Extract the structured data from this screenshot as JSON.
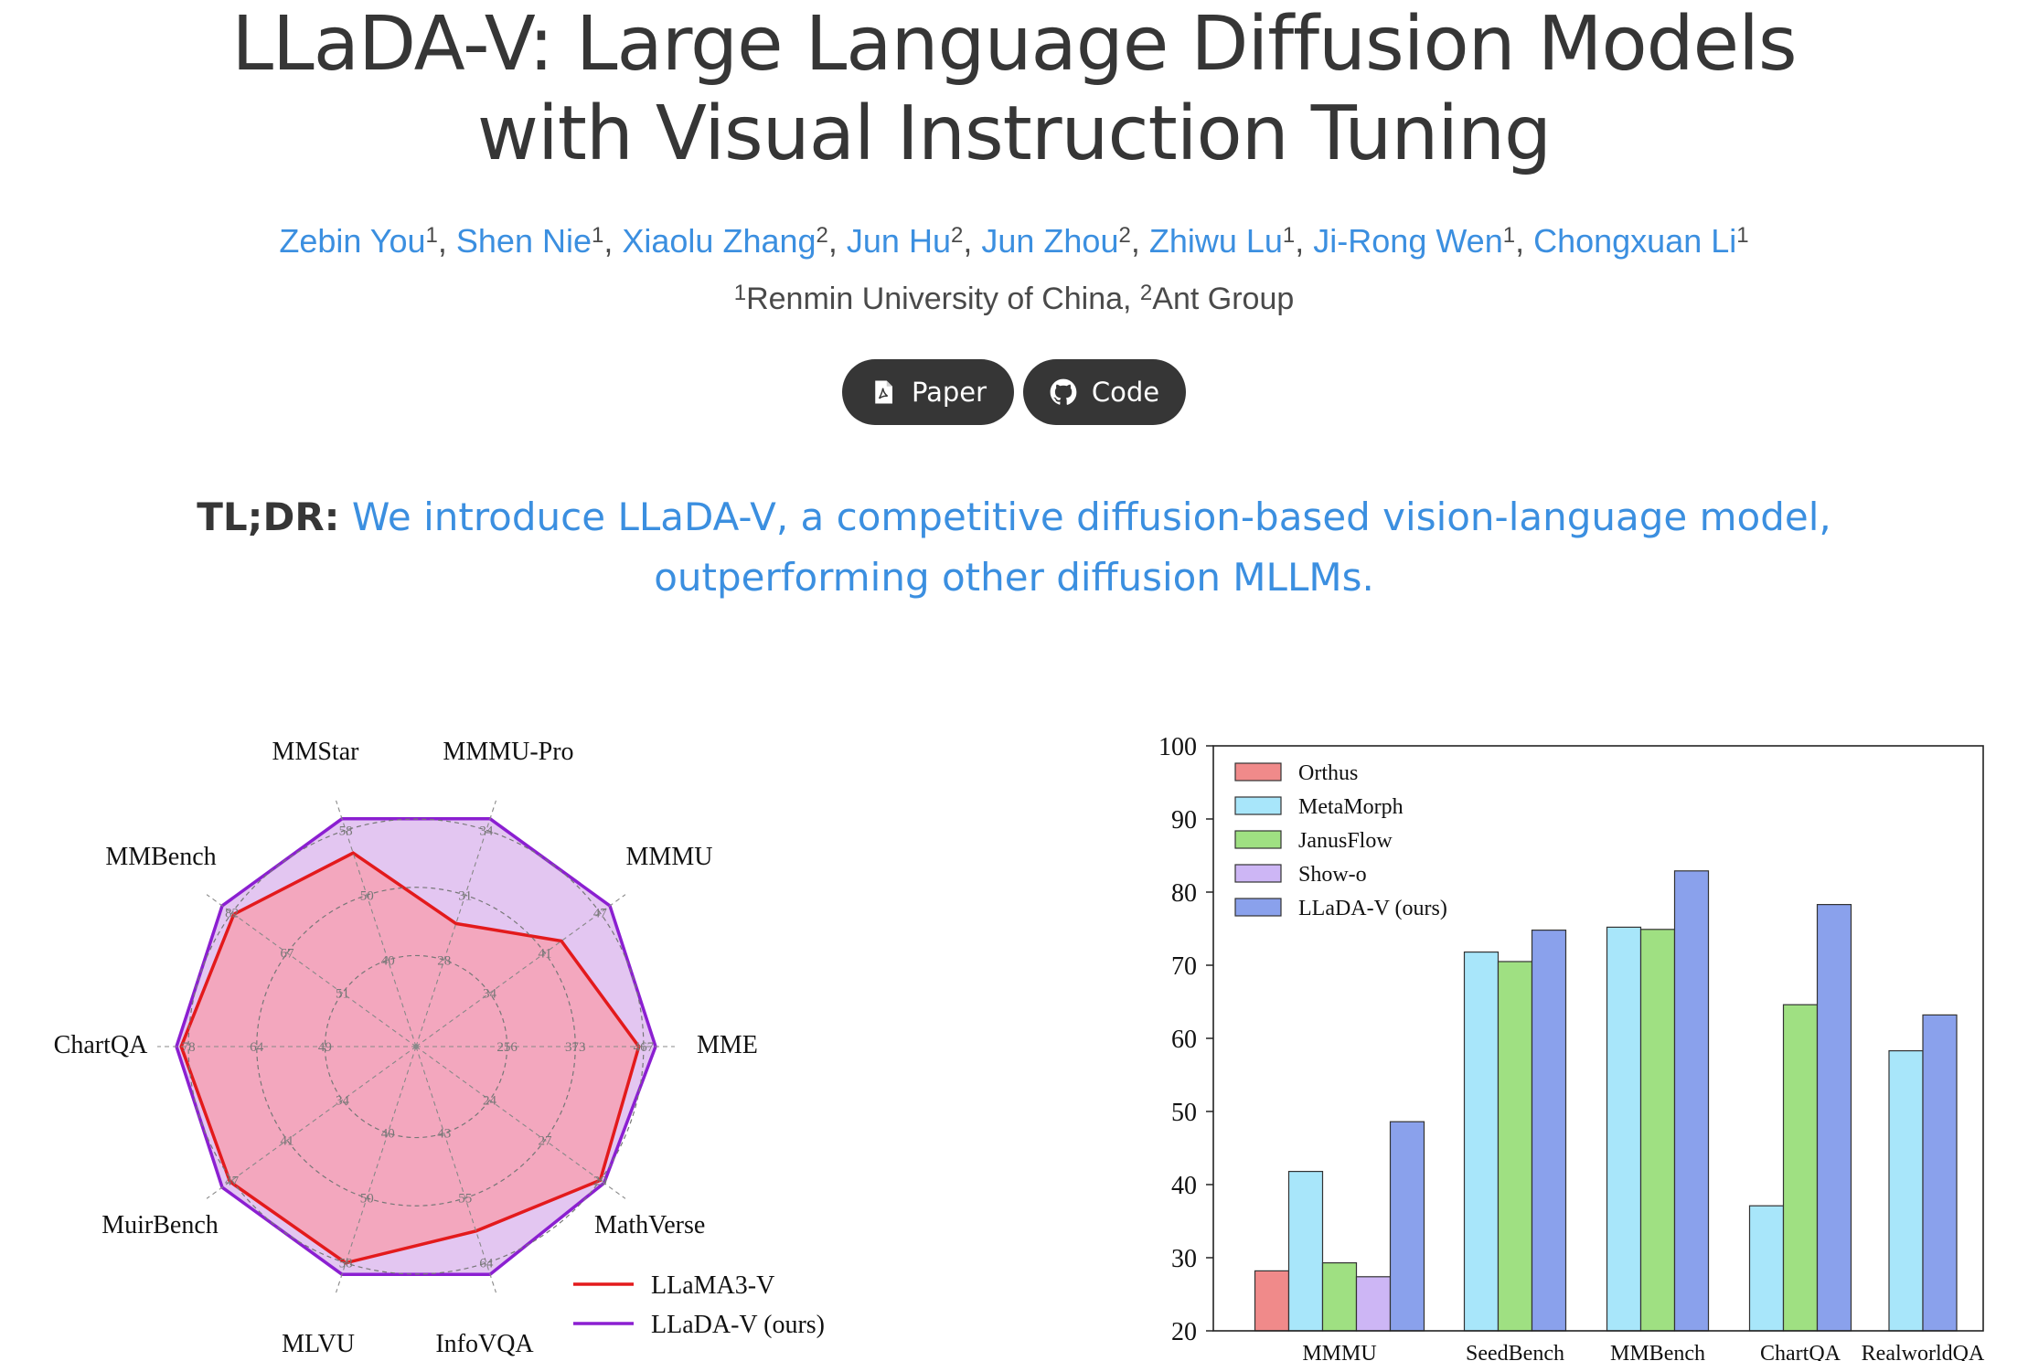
{
  "title": {
    "line1": "LLaDA-V: Large Language Diffusion Models",
    "line2": "with Visual Instruction Tuning"
  },
  "authors": [
    {
      "name": "Zebin You",
      "aff": "1",
      "sep": ", "
    },
    {
      "name": "Shen Nie",
      "aff": "1",
      "sep": ", "
    },
    {
      "name": "Xiaolu Zhang",
      "aff": "2",
      "sep": ", "
    },
    {
      "name": "Jun Hu",
      "aff": "2",
      "sep": ", "
    },
    {
      "name": "Jun Zhou",
      "aff": "2",
      "sep": ", "
    },
    {
      "name": "Zhiwu Lu",
      "aff": "1",
      "sep": ", "
    },
    {
      "name": "Ji-Rong Wen",
      "aff": "1",
      "sep": ", "
    },
    {
      "name": "Chongxuan Li",
      "aff": "1",
      "sep": ""
    }
  ],
  "affiliations": {
    "a1_num": "1",
    "a1_name": "Renmin University of China, ",
    "a2_num": "2",
    "a2_name": "Ant Group"
  },
  "buttons": {
    "paper": "Paper",
    "code": "Code"
  },
  "icons": {
    "paper": "pdf-icon",
    "code": "github-icon"
  },
  "tldr": {
    "label": "TL;DR:",
    "line1": "We introduce LLaDA-V, a competitive diffusion-based vision-language model,",
    "line2": "outperforming other diffusion MLLMs."
  },
  "colors": {
    "link": "#3b8fe0",
    "button": "#363636"
  },
  "chart_data": [
    {
      "type": "radar",
      "axes": [
        {
          "label": "MMStar",
          "ticks": [
            "40",
            "50",
            "58"
          ]
        },
        {
          "label": "MMMU-Pro",
          "ticks": [
            "28",
            "31",
            "34"
          ]
        },
        {
          "label": "MMMU",
          "ticks": [
            "34",
            "41",
            "47"
          ]
        },
        {
          "label": "MME",
          "ticks": [
            "256",
            "373",
            "467"
          ]
        },
        {
          "label": "MathVerse",
          "ticks": [
            "24",
            "27",
            "29"
          ]
        },
        {
          "label": "InfoVQA",
          "ticks": [
            "43",
            "55",
            "64"
          ]
        },
        {
          "label": "MLVU",
          "ticks": [
            "40",
            "50",
            "58"
          ]
        },
        {
          "label": "MuirBench",
          "ticks": [
            "34",
            "41",
            "47"
          ]
        },
        {
          "label": "ChartQA",
          "ticks": [
            "49",
            "64",
            "78"
          ]
        },
        {
          "label": "MMBench",
          "ticks": [
            "51",
            "67",
            "82"
          ]
        }
      ],
      "series": [
        {
          "name": "LLaMA3-V",
          "color": "#e31a1c",
          "fill": "#f4a3b8",
          "values": [
            0.85,
            0.54,
            0.75,
            0.93,
            0.95,
            0.81,
            0.95,
            0.96,
            0.98,
            0.94
          ]
        },
        {
          "name": "LLaDA-V (ours)",
          "color": "#8b1fd1",
          "fill": "#d9b3ec",
          "values": [
            1.0,
            1.0,
            1.0,
            1.0,
            0.97,
            1.0,
            1.0,
            1.0,
            1.0,
            1.0
          ]
        }
      ]
    },
    {
      "type": "bar",
      "categories": [
        "MMMU",
        "SeedBench",
        "MMBench",
        "ChartQA",
        "RealworldQA"
      ],
      "ylim": [
        20,
        100
      ],
      "yticks": [
        "20",
        "30",
        "40",
        "50",
        "60",
        "70",
        "80",
        "90",
        "100"
      ],
      "series": [
        {
          "name": "Orthus",
          "color": "#f08a8a",
          "values": [
            28.2,
            null,
            null,
            null,
            null
          ]
        },
        {
          "name": "MetaMorph",
          "color": "#a8e6fa",
          "values": [
            41.8,
            71.8,
            75.2,
            37.1,
            58.3
          ]
        },
        {
          "name": "JanusFlow",
          "color": "#9fe082",
          "values": [
            29.3,
            70.5,
            74.9,
            64.6,
            null
          ]
        },
        {
          "name": "Show-o",
          "color": "#cdb6f5",
          "values": [
            27.4,
            null,
            null,
            null,
            null
          ]
        },
        {
          "name": "LLaDA-V (ours)",
          "color": "#8aa1ec",
          "values": [
            48.6,
            74.8,
            82.9,
            78.3,
            63.2
          ]
        }
      ]
    }
  ]
}
